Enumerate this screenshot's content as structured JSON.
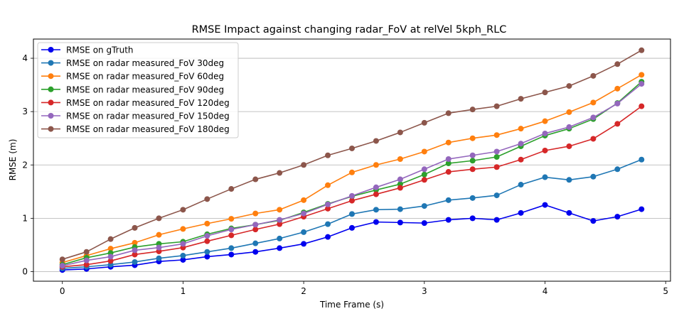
{
  "chart_data": {
    "type": "line",
    "title": "RMSE Impact against changing radar_FoV at relVel 5kph_RLC",
    "xlabel": "Time Frame (s)",
    "ylabel": "RMSE (m)",
    "xlim": [
      -0.24,
      5.04
    ],
    "ylim": [
      -0.18,
      4.36
    ],
    "xticks": [
      0,
      1,
      2,
      3,
      4,
      5
    ],
    "yticks": [
      0,
      1,
      2,
      3,
      4
    ],
    "grid": "horizontal",
    "legend_position": "top-left",
    "x": [
      0,
      0.2,
      0.4,
      0.6,
      0.8,
      1.0,
      1.2,
      1.4,
      1.6,
      1.8,
      2.0,
      2.2,
      2.4,
      2.6,
      2.8,
      3.0,
      3.2,
      3.4,
      3.6,
      3.8,
      4.0,
      4.2,
      4.4,
      4.6,
      4.8
    ],
    "series": [
      {
        "name": "RMSE on gTruth",
        "color": "#0000ee",
        "values": [
          0.03,
          0.05,
          0.09,
          0.12,
          0.19,
          0.22,
          0.28,
          0.32,
          0.37,
          0.44,
          0.52,
          0.65,
          0.82,
          0.93,
          0.92,
          0.91,
          0.97,
          1.0,
          0.97,
          1.1,
          1.25,
          1.1,
          0.95,
          1.03,
          1.17
        ]
      },
      {
        "name": "RMSE on radar measured_FoV 30deg",
        "color": "#1f77b4",
        "values": [
          0.06,
          0.09,
          0.13,
          0.18,
          0.25,
          0.3,
          0.37,
          0.44,
          0.53,
          0.62,
          0.74,
          0.89,
          1.08,
          1.16,
          1.17,
          1.23,
          1.34,
          1.38,
          1.43,
          1.63,
          1.77,
          1.72,
          1.78,
          1.92,
          2.1
        ]
      },
      {
        "name": "RMSE on radar measured_FoV 60deg",
        "color": "#ff7f0e",
        "values": [
          0.17,
          0.3,
          0.43,
          0.54,
          0.69,
          0.8,
          0.9,
          0.99,
          1.09,
          1.16,
          1.34,
          1.62,
          1.86,
          2.0,
          2.11,
          2.25,
          2.42,
          2.5,
          2.56,
          2.68,
          2.82,
          2.99,
          3.17,
          3.43,
          3.69
        ]
      },
      {
        "name": "RMSE on radar measured_FoV 90deg",
        "color": "#2ca02c",
        "values": [
          0.13,
          0.26,
          0.35,
          0.46,
          0.52,
          0.56,
          0.7,
          0.81,
          0.88,
          0.96,
          1.11,
          1.27,
          1.41,
          1.53,
          1.64,
          1.82,
          2.03,
          2.08,
          2.15,
          2.35,
          2.55,
          2.68,
          2.86,
          3.16,
          3.56
        ]
      },
      {
        "name": "RMSE on radar measured_FoV 120deg",
        "color": "#d62728",
        "values": [
          0.09,
          0.13,
          0.2,
          0.32,
          0.38,
          0.45,
          0.57,
          0.68,
          0.79,
          0.89,
          1.03,
          1.18,
          1.33,
          1.45,
          1.57,
          1.72,
          1.87,
          1.92,
          1.96,
          2.1,
          2.27,
          2.35,
          2.49,
          2.77,
          3.1
        ]
      },
      {
        "name": "RMSE on radar measured_FoV 150deg",
        "color": "#9467bd",
        "values": [
          0.11,
          0.21,
          0.28,
          0.4,
          0.45,
          0.52,
          0.67,
          0.79,
          0.88,
          0.97,
          1.09,
          1.26,
          1.42,
          1.58,
          1.73,
          1.92,
          2.11,
          2.18,
          2.25,
          2.4,
          2.59,
          2.71,
          2.89,
          3.15,
          3.52
        ]
      },
      {
        "name": "RMSE on radar measured_FoV 180deg",
        "color": "#8c564b",
        "values": [
          0.23,
          0.37,
          0.61,
          0.82,
          1.0,
          1.16,
          1.36,
          1.55,
          1.73,
          1.85,
          2.0,
          2.18,
          2.31,
          2.45,
          2.61,
          2.79,
          2.97,
          3.04,
          3.1,
          3.24,
          3.36,
          3.48,
          3.67,
          3.89,
          4.15
        ]
      }
    ]
  }
}
